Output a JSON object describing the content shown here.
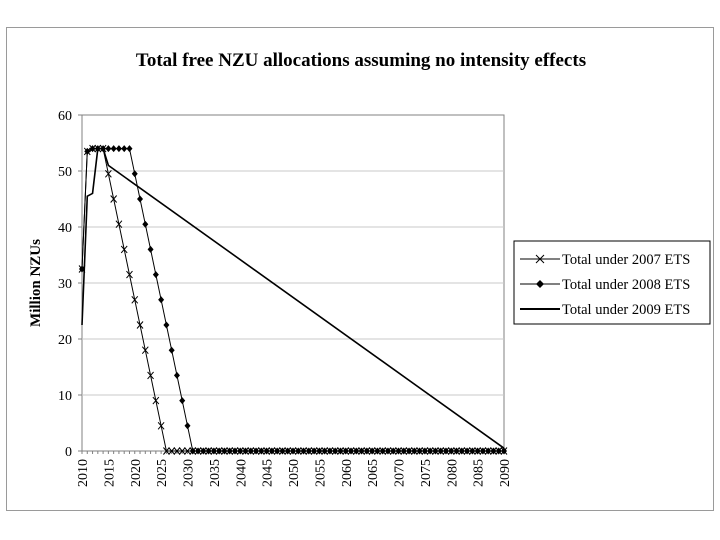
{
  "chart_data": {
    "type": "line",
    "title": "Total free NZU allocations assuming no intensity effects",
    "xlabel": "",
    "ylabel": "Million NZUs",
    "x": [
      2010,
      2011,
      2012,
      2013,
      2014,
      2015,
      2016,
      2017,
      2018,
      2019,
      2020,
      2021,
      2022,
      2023,
      2024,
      2025,
      2026,
      2027,
      2028,
      2029,
      2030,
      2031,
      2032,
      2033,
      2034,
      2035,
      2036,
      2037,
      2038,
      2039,
      2040,
      2041,
      2042,
      2043,
      2044,
      2045,
      2046,
      2047,
      2048,
      2049,
      2050,
      2051,
      2052,
      2053,
      2054,
      2055,
      2056,
      2057,
      2058,
      2059,
      2060,
      2061,
      2062,
      2063,
      2064,
      2065,
      2066,
      2067,
      2068,
      2069,
      2070,
      2071,
      2072,
      2073,
      2074,
      2075,
      2076,
      2077,
      2078,
      2079,
      2080,
      2081,
      2082,
      2083,
      2084,
      2085,
      2086,
      2087,
      2088,
      2089,
      2090
    ],
    "xticks": [
      "2010",
      "2015",
      "2020",
      "2025",
      "2030",
      "2035",
      "2040",
      "2045",
      "2050",
      "2055",
      "2060",
      "2065",
      "2070",
      "2075",
      "2080",
      "2085",
      "2090"
    ],
    "xlim": [
      2010,
      2090
    ],
    "ylim": [
      0,
      60
    ],
    "yticks": [
      "0",
      "10",
      "20",
      "30",
      "40",
      "50",
      "60"
    ],
    "grid": "horizontal",
    "legend_position": "right",
    "series": [
      {
        "name": "Total under 2007 ETS",
        "marker": "x",
        "start_year": 2010,
        "end_year": 2090,
        "values": [
          32.5,
          53.5,
          54.0,
          54.0,
          54.0,
          49.5,
          45.0,
          40.5,
          36.0,
          31.5,
          27.0,
          22.5,
          18.0,
          13.5,
          9.0,
          4.5,
          0,
          0,
          0,
          0,
          0,
          0,
          0,
          0,
          0,
          0,
          0,
          0,
          0,
          0,
          0,
          0,
          0,
          0,
          0,
          0,
          0,
          0,
          0,
          0,
          0,
          0,
          0,
          0,
          0,
          0,
          0,
          0,
          0,
          0,
          0,
          0,
          0,
          0,
          0,
          0,
          0,
          0,
          0,
          0,
          0,
          0,
          0,
          0,
          0,
          0,
          0,
          0,
          0,
          0,
          0,
          0,
          0,
          0,
          0,
          0,
          0,
          0,
          0,
          0,
          0
        ]
      },
      {
        "name": "Total under 2008 ETS",
        "marker": "diamond",
        "start_year": 2010,
        "end_year": 2090,
        "values": [
          32.5,
          53.5,
          54.0,
          54.0,
          54.0,
          54.0,
          54.0,
          54.0,
          54.0,
          54.0,
          49.5,
          45.0,
          40.5,
          36.0,
          31.5,
          27.0,
          22.5,
          18.0,
          13.5,
          9.0,
          4.5,
          0,
          0,
          0,
          0,
          0,
          0,
          0,
          0,
          0,
          0,
          0,
          0,
          0,
          0,
          0,
          0,
          0,
          0,
          0,
          0,
          0,
          0,
          0,
          0,
          0,
          0,
          0,
          0,
          0,
          0,
          0,
          0,
          0,
          0,
          0,
          0,
          0,
          0,
          0,
          0,
          0,
          0,
          0,
          0,
          0,
          0,
          0,
          0,
          0,
          0,
          0,
          0,
          0,
          0,
          0,
          0,
          0,
          0,
          0,
          0
        ]
      },
      {
        "name": "Total under 2009 ETS",
        "marker": "none",
        "points": [
          [
            2010,
            22.5
          ],
          [
            2011,
            45.5
          ],
          [
            2012,
            46.0
          ],
          [
            2013,
            54.0
          ],
          [
            2014,
            54.0
          ],
          [
            2015,
            51.0
          ],
          [
            2090,
            0.5
          ]
        ]
      }
    ]
  }
}
